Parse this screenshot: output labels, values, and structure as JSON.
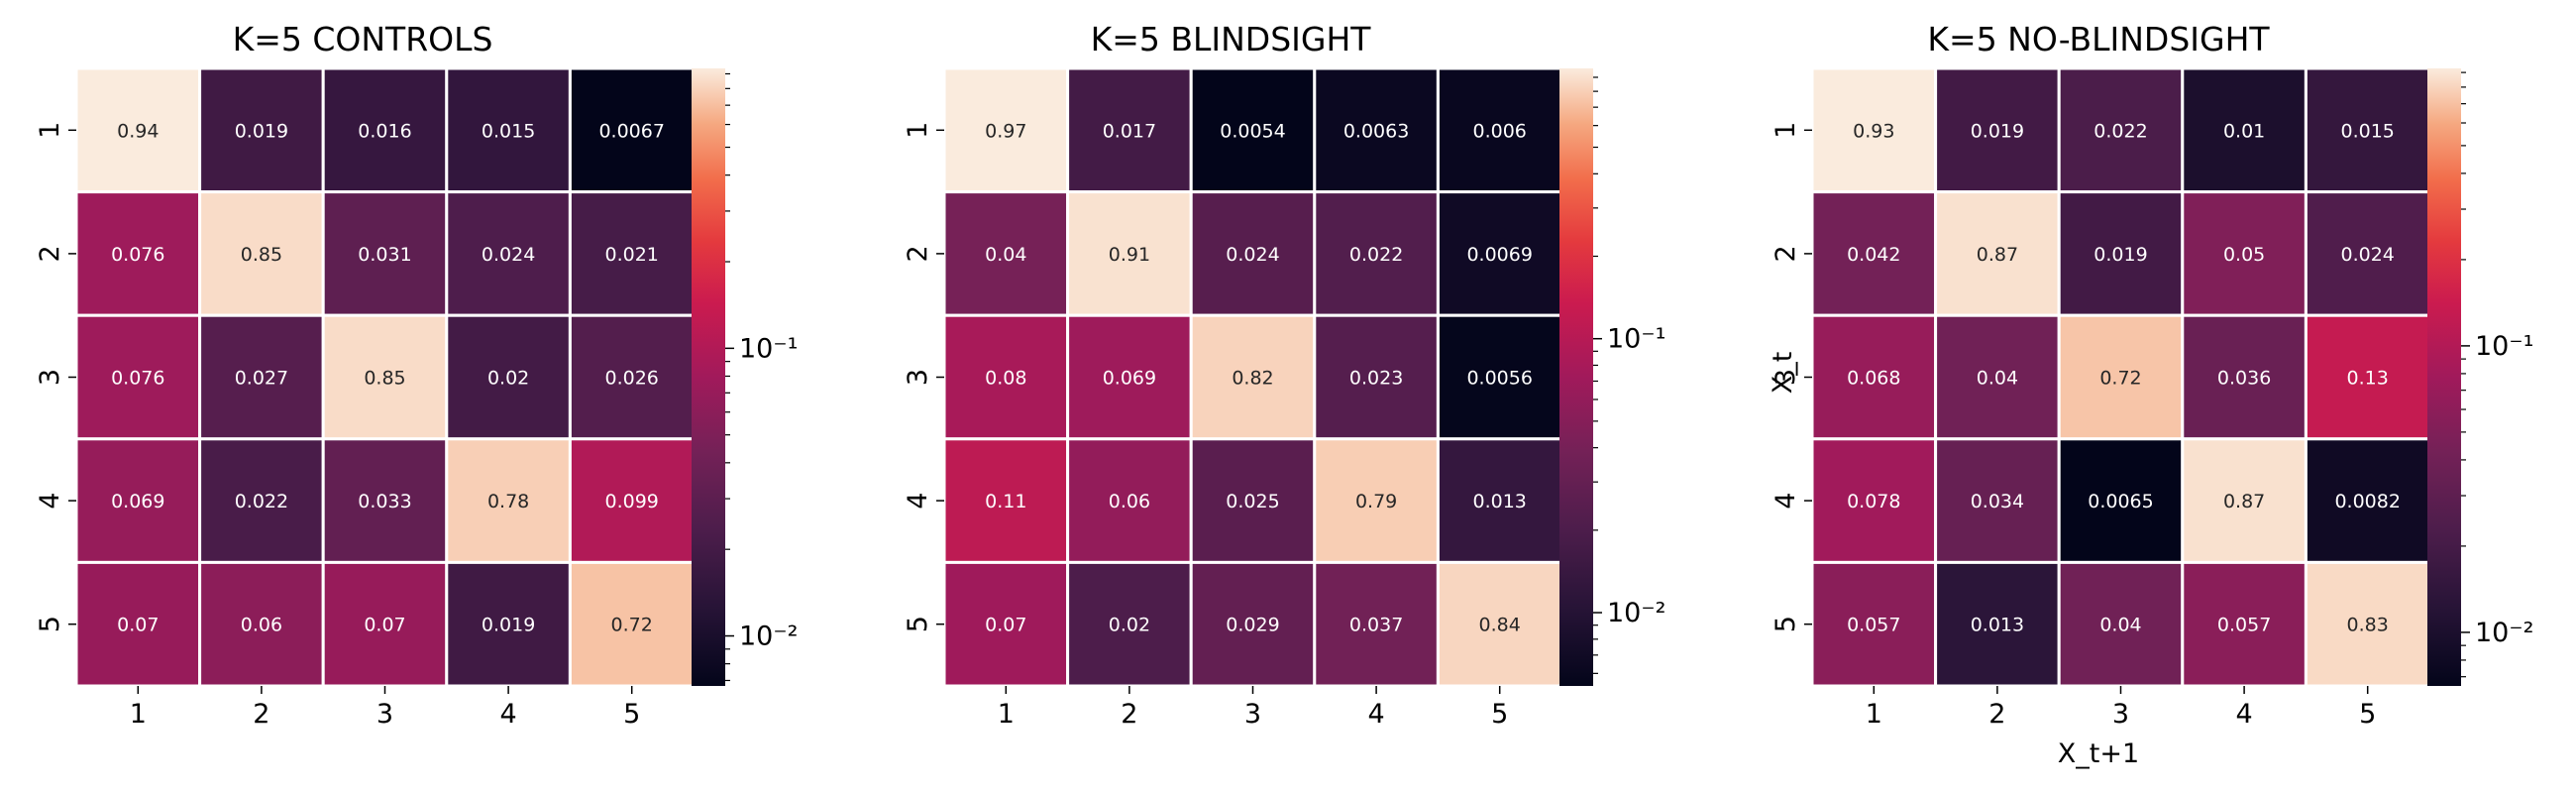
{
  "figure": {
    "panels": [
      {
        "title": "K=5 CONTROLS"
      },
      {
        "title": "K=5 BLINDSIGHT"
      },
      {
        "title": "K=5 NO-BLINDSIGHT"
      }
    ]
  },
  "chart_data": [
    {
      "type": "heatmap",
      "title": "K=5 CONTROLS",
      "x_categories": [
        "1",
        "2",
        "3",
        "4",
        "5"
      ],
      "y_categories": [
        "1",
        "2",
        "3",
        "4",
        "5"
      ],
      "values": [
        [
          0.94,
          0.019,
          0.016,
          0.015,
          0.0067
        ],
        [
          0.076,
          0.85,
          0.031,
          0.024,
          0.021
        ],
        [
          0.076,
          0.027,
          0.85,
          0.02,
          0.026
        ],
        [
          0.069,
          0.022,
          0.033,
          0.78,
          0.099
        ],
        [
          0.07,
          0.06,
          0.07,
          0.019,
          0.72
        ]
      ],
      "cell_labels": [
        [
          "0.94",
          "0.019",
          "0.016",
          "0.015",
          "0.0067"
        ],
        [
          "0.076",
          "0.85",
          "0.031",
          "0.024",
          "0.021"
        ],
        [
          "0.076",
          "0.027",
          "0.85",
          "0.02",
          "0.026"
        ],
        [
          "0.069",
          "0.022",
          "0.033",
          "0.78",
          "0.099"
        ],
        [
          "0.07",
          "0.06",
          "0.07",
          "0.019",
          "0.72"
        ]
      ],
      "xlabel": "",
      "ylabel": "",
      "colorbar": {
        "scale": "log",
        "range": [
          0.0067,
          0.94
        ],
        "tick_labels": [
          {
            "value": 0.01,
            "label": "10⁻²"
          },
          {
            "value": 0.1,
            "label": "10⁻¹"
          }
        ]
      }
    },
    {
      "type": "heatmap",
      "title": "K=5 BLINDSIGHT",
      "x_categories": [
        "1",
        "2",
        "3",
        "4",
        "5"
      ],
      "y_categories": [
        "1",
        "2",
        "3",
        "4",
        "5"
      ],
      "values": [
        [
          0.97,
          0.017,
          0.0054,
          0.0063,
          0.006
        ],
        [
          0.04,
          0.91,
          0.024,
          0.022,
          0.0069
        ],
        [
          0.08,
          0.069,
          0.82,
          0.023,
          0.0056
        ],
        [
          0.11,
          0.06,
          0.025,
          0.79,
          0.013
        ],
        [
          0.07,
          0.02,
          0.029,
          0.037,
          0.84
        ]
      ],
      "cell_labels": [
        [
          "0.97",
          "0.017",
          "0.0054",
          "0.0063",
          "0.006"
        ],
        [
          "0.04",
          "0.91",
          "0.024",
          "0.022",
          "0.0069"
        ],
        [
          "0.08",
          "0.069",
          "0.82",
          "0.023",
          "0.0056"
        ],
        [
          "0.11",
          "0.06",
          "0.025",
          "0.79",
          "0.013"
        ],
        [
          "0.07",
          "0.02",
          "0.029",
          "0.037",
          "0.84"
        ]
      ],
      "xlabel": "",
      "ylabel": "",
      "colorbar": {
        "scale": "log",
        "range": [
          0.0054,
          0.97
        ],
        "tick_labels": [
          {
            "value": 0.01,
            "label": "10⁻²"
          },
          {
            "value": 0.1,
            "label": "10⁻¹"
          }
        ]
      }
    },
    {
      "type": "heatmap",
      "title": "K=5 NO-BLINDSIGHT",
      "x_categories": [
        "1",
        "2",
        "3",
        "4",
        "5"
      ],
      "y_categories": [
        "1",
        "2",
        "3",
        "4",
        "5"
      ],
      "values": [
        [
          0.93,
          0.019,
          0.022,
          0.01,
          0.015
        ],
        [
          0.042,
          0.87,
          0.019,
          0.05,
          0.024
        ],
        [
          0.068,
          0.04,
          0.72,
          0.036,
          0.13
        ],
        [
          0.078,
          0.034,
          0.0065,
          0.87,
          0.0082
        ],
        [
          0.057,
          0.013,
          0.04,
          0.057,
          0.83
        ]
      ],
      "cell_labels": [
        [
          "0.93",
          "0.019",
          "0.022",
          "0.01",
          "0.015"
        ],
        [
          "0.042",
          "0.87",
          "0.019",
          "0.05",
          "0.024"
        ],
        [
          "0.068",
          "0.04",
          "0.72",
          "0.036",
          "0.13"
        ],
        [
          "0.078",
          "0.034",
          "0.0065",
          "0.87",
          "0.0082"
        ],
        [
          "0.057",
          "0.013",
          "0.04",
          "0.057",
          "0.83"
        ]
      ],
      "xlabel": "X_t+1",
      "ylabel": "X_t",
      "colorbar": {
        "scale": "log",
        "range": [
          0.0065,
          0.93
        ],
        "tick_labels": [
          {
            "value": 0.01,
            "label": "10⁻²"
          },
          {
            "value": 0.1,
            "label": "10⁻¹"
          }
        ]
      }
    }
  ],
  "colors": {
    "colormap": "rocket",
    "cell_border": "#ffffff",
    "dark_label_text": "#262626",
    "light_label_text": "#ffffff"
  }
}
